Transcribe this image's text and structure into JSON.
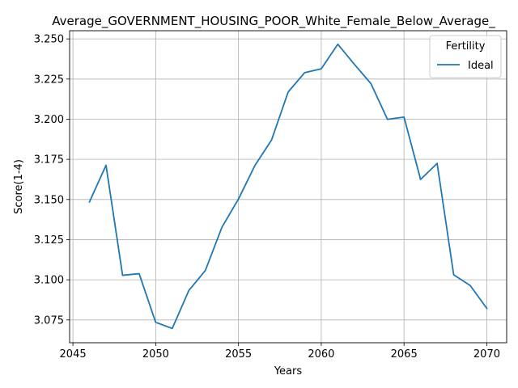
{
  "chart_data": {
    "type": "line",
    "title": "Average_GOVERNMENT_HOUSING_POOR_White_Female_Below_Average_",
    "xlabel": "Years",
    "ylabel": "Score(1-4)",
    "x": [
      2046,
      2047,
      2048,
      2049,
      2050,
      2051,
      2052,
      2053,
      2054,
      2055,
      2056,
      2057,
      2058,
      2059,
      2060,
      2061,
      2062,
      2063,
      2064,
      2065,
      2066,
      2067,
      2068,
      2069,
      2070
    ],
    "series": [
      {
        "name": "Ideal",
        "color": "#1f77b4",
        "values": [
          3.1485,
          3.1713,
          3.1028,
          3.1038,
          3.0735,
          3.0697,
          3.0933,
          3.1058,
          3.1327,
          3.1503,
          3.1713,
          3.1871,
          3.2169,
          3.229,
          3.2314,
          3.2467,
          3.2342,
          3.2222,
          3.1999,
          3.2013,
          3.1625,
          3.1725,
          3.1031,
          3.0964,
          3.0822
        ]
      }
    ],
    "xlim": [
      2044.8,
      2071.2
    ],
    "ylim": [
      3.0608,
      3.2551
    ],
    "xticks": [
      "2045",
      "2050",
      "2055",
      "2060",
      "2065",
      "2070"
    ],
    "yticks": [
      "3.075",
      "3.100",
      "3.125",
      "3.150",
      "3.175",
      "3.200",
      "3.225",
      "3.250"
    ],
    "grid": true,
    "legend": {
      "title": "Fertility",
      "placement": "top-right",
      "entries": [
        "Ideal"
      ]
    }
  }
}
